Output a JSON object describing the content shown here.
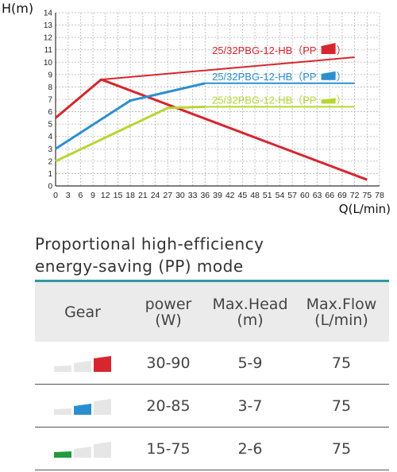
{
  "chart_data": {
    "type": "line",
    "ylabel": "H(m)",
    "xlabel": "Q(L/min)",
    "xlim": [
      0,
      78
    ],
    "ylim": [
      0,
      14
    ],
    "x_ticks": [
      0,
      3,
      6,
      9,
      12,
      15,
      18,
      21,
      24,
      27,
      30,
      33,
      36,
      39,
      42,
      45,
      48,
      51,
      54,
      57,
      60,
      63,
      66,
      69,
      72,
      75,
      78
    ],
    "y_ticks": [
      0,
      1,
      2,
      3,
      4,
      5,
      6,
      7,
      8,
      9,
      10,
      11,
      12,
      13,
      14
    ],
    "grid": true,
    "series": [
      {
        "name": "25/32PBG-12-HB（PP",
        "color": "#d7262e",
        "points": [
          [
            0,
            5.5
          ],
          [
            11,
            8.6
          ],
          [
            75,
            0.5
          ]
        ],
        "envelope": [
          [
            11,
            8.6
          ],
          [
            72,
            10.4
          ]
        ],
        "label_at": [
          72,
          10.4
        ]
      },
      {
        "name": "25/32PBG-12-HB（PP",
        "color": "#2a8fd0",
        "points": [
          [
            0,
            3.0
          ],
          [
            18,
            6.9
          ],
          [
            36,
            8.3
          ]
        ],
        "envelope": [
          [
            36,
            8.3
          ],
          [
            72,
            8.3
          ]
        ],
        "label_at": [
          72,
          8.3
        ]
      },
      {
        "name": "25/32PBG-12-HB（PP",
        "color": "#b8d632",
        "points": [
          [
            0,
            2.0
          ],
          [
            27,
            6.3
          ],
          [
            36,
            6.4
          ]
        ],
        "envelope": [
          [
            36,
            6.4
          ],
          [
            72,
            6.4
          ]
        ],
        "label_at": [
          72,
          6.4
        ]
      }
    ]
  },
  "legend_suffix": "）",
  "mode": {
    "title_line1": "Proportional high-efficiency",
    "title_line2": "energy-saving (PP) mode"
  },
  "table": {
    "headers": {
      "gear": "Gear",
      "power_1": "power",
      "power_2": "(W)",
      "head_1": "Max.Head",
      "head_2": "(m)",
      "flow_1": "Max.Flow",
      "flow_2": "(L/min)"
    },
    "rows": [
      {
        "gear_level": 3,
        "gear_color": "#d7262e",
        "power": "30-90",
        "head": "5-9",
        "flow": "75"
      },
      {
        "gear_level": 2,
        "gear_color": "#2a8fd0",
        "power": "20-85",
        "head": "3-7",
        "flow": "75"
      },
      {
        "gear_level": 1,
        "gear_color": "#1f9a3e",
        "power": "15-75",
        "head": "2-6",
        "flow": "75"
      }
    ]
  }
}
